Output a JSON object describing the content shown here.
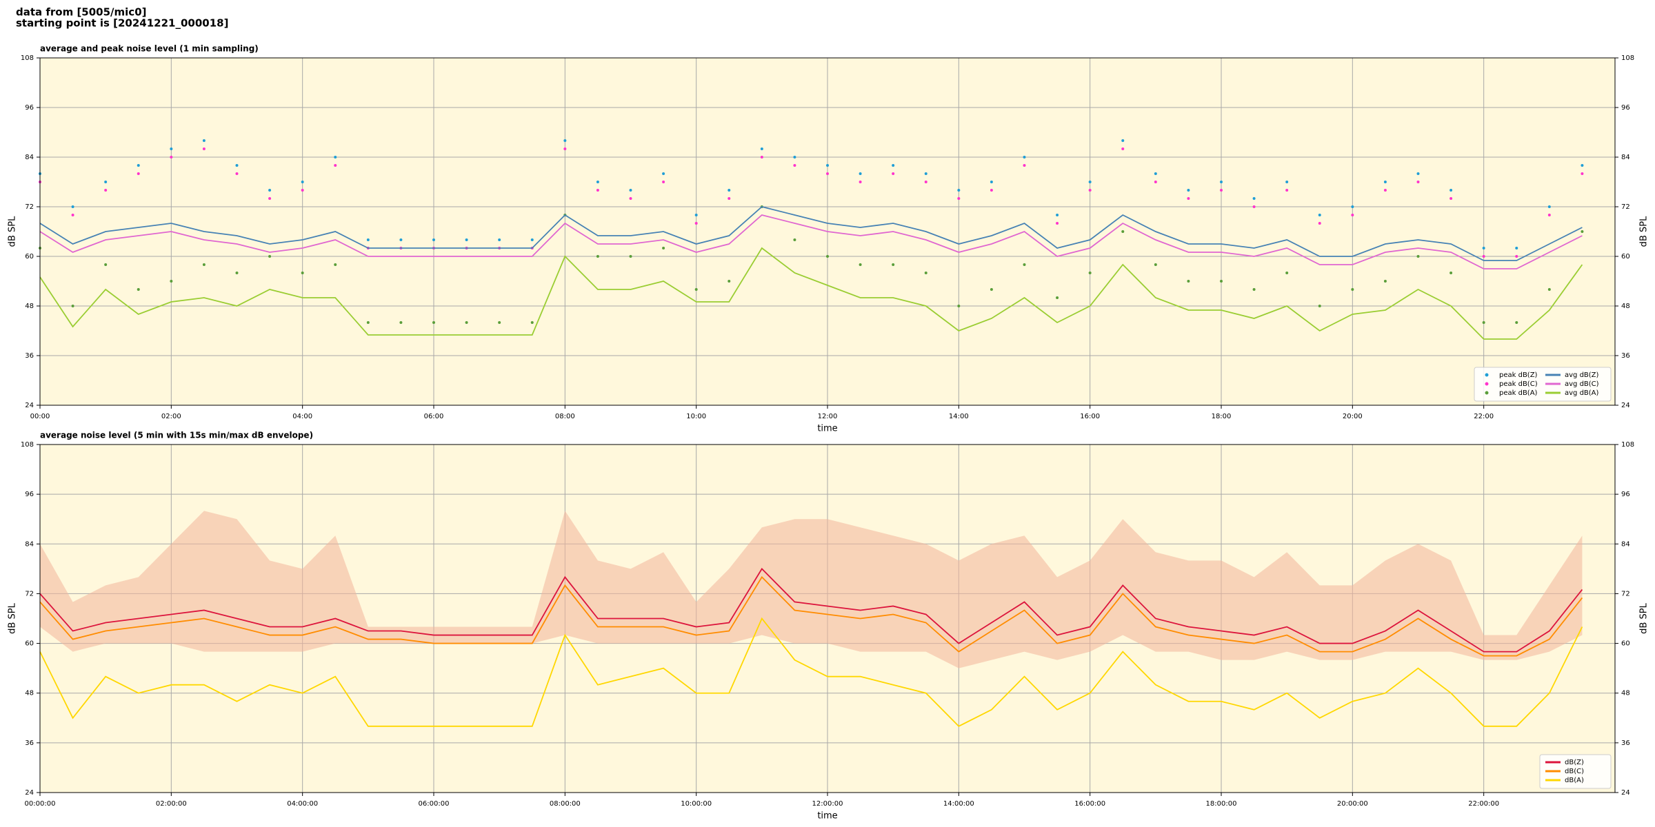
{
  "title": [
    "data from [5005/mic0]",
    "starting point is [20241221_000018]"
  ],
  "chart_data": [
    {
      "type": "line",
      "title": "average and peak noise level (1 min sampling)",
      "xlabel": "time",
      "ylabel": "dB SPL",
      "background": "#fff8dc",
      "grid": true,
      "legend": "lower right",
      "legend_columns": 2,
      "xlim": [
        0,
        24
      ],
      "ylim": [
        24,
        108
      ],
      "y2lim": [
        24,
        108
      ],
      "yticks": [
        24,
        36,
        48,
        60,
        72,
        84,
        96,
        108
      ],
      "y2ticks": [
        24,
        36,
        48,
        60,
        72,
        84,
        96,
        108
      ],
      "xticks": [
        {
          "value": 0,
          "label": "00:00"
        },
        {
          "value": 2,
          "label": "02:00"
        },
        {
          "value": 4,
          "label": "04:00"
        },
        {
          "value": 6,
          "label": "06:00"
        },
        {
          "value": 8,
          "label": "08:00"
        },
        {
          "value": 10,
          "label": "10:00"
        },
        {
          "value": 12,
          "label": "12:00"
        },
        {
          "value": 14,
          "label": "14:00"
        },
        {
          "value": 16,
          "label": "16:00"
        },
        {
          "value": 18,
          "label": "18:00"
        },
        {
          "value": 20,
          "label": "20:00"
        },
        {
          "value": 22,
          "label": "22:00"
        }
      ],
      "x": [
        0,
        0.5,
        1,
        1.5,
        2,
        2.5,
        3,
        3.5,
        4,
        4.5,
        5,
        5.5,
        6,
        6.5,
        7,
        7.5,
        8,
        8.5,
        9,
        9.5,
        10,
        10.5,
        11,
        11.5,
        12,
        12.5,
        13,
        13.5,
        14,
        14.5,
        15,
        15.5,
        16,
        16.5,
        17,
        17.5,
        18,
        18.5,
        19,
        19.5,
        20,
        20.5,
        21,
        21.5,
        22,
        22.5,
        23,
        23.5
      ],
      "series": [
        {
          "name": "peak dB(Z)",
          "style": "dots",
          "color": "#1f9ed6",
          "values": [
            80,
            72,
            78,
            82,
            86,
            88,
            82,
            76,
            78,
            84,
            64,
            64,
            64,
            64,
            64,
            64,
            88,
            78,
            76,
            80,
            70,
            76,
            86,
            84,
            82,
            80,
            82,
            80,
            76,
            78,
            84,
            70,
            78,
            88,
            80,
            76,
            78,
            74,
            78,
            70,
            72,
            78,
            80,
            76,
            62,
            62,
            72,
            82
          ]
        },
        {
          "name": "peak dB(C)",
          "style": "dots",
          "color": "#ff33cc",
          "values": [
            78,
            70,
            76,
            80,
            84,
            86,
            80,
            74,
            76,
            82,
            62,
            62,
            62,
            62,
            62,
            62,
            86,
            76,
            74,
            78,
            68,
            74,
            84,
            82,
            80,
            78,
            80,
            78,
            74,
            76,
            82,
            68,
            76,
            86,
            78,
            74,
            76,
            72,
            76,
            68,
            70,
            76,
            78,
            74,
            60,
            60,
            70,
            80
          ]
        },
        {
          "name": "peak dB(A)",
          "style": "dots",
          "color": "#5a9e3a",
          "values": [
            62,
            48,
            58,
            52,
            54,
            58,
            56,
            60,
            56,
            58,
            44,
            44,
            44,
            44,
            44,
            44,
            70,
            60,
            60,
            62,
            52,
            54,
            72,
            64,
            60,
            58,
            58,
            56,
            48,
            52,
            58,
            50,
            56,
            66,
            58,
            54,
            54,
            52,
            56,
            48,
            52,
            54,
            60,
            56,
            44,
            44,
            52,
            66
          ]
        },
        {
          "name": "avg dB(Z)",
          "style": "line",
          "color": "#4682b4",
          "values": [
            68,
            63,
            66,
            67,
            68,
            66,
            65,
            63,
            64,
            66,
            62,
            62,
            62,
            62,
            62,
            62,
            70,
            65,
            65,
            66,
            63,
            65,
            72,
            70,
            68,
            67,
            68,
            66,
            63,
            65,
            68,
            62,
            64,
            70,
            66,
            63,
            63,
            62,
            64,
            60,
            60,
            63,
            64,
            63,
            59,
            59,
            63,
            67
          ]
        },
        {
          "name": "avg dB(C)",
          "style": "line",
          "color": "#e066d0",
          "values": [
            66,
            61,
            64,
            65,
            66,
            64,
            63,
            61,
            62,
            64,
            60,
            60,
            60,
            60,
            60,
            60,
            68,
            63,
            63,
            64,
            61,
            63,
            70,
            68,
            66,
            65,
            66,
            64,
            61,
            63,
            66,
            60,
            62,
            68,
            64,
            61,
            61,
            60,
            62,
            58,
            58,
            61,
            62,
            61,
            57,
            57,
            61,
            65
          ]
        },
        {
          "name": "avg dB(A)",
          "style": "line",
          "color": "#9acd32",
          "values": [
            55,
            43,
            52,
            46,
            49,
            50,
            48,
            52,
            50,
            50,
            41,
            41,
            41,
            41,
            41,
            41,
            60,
            52,
            52,
            54,
            49,
            49,
            62,
            56,
            53,
            50,
            50,
            48,
            42,
            45,
            50,
            44,
            48,
            58,
            50,
            47,
            47,
            45,
            48,
            42,
            46,
            47,
            52,
            48,
            40,
            40,
            47,
            58
          ]
        }
      ]
    },
    {
      "type": "line",
      "title": "average noise level (5 min with 15s min/max dB envelope)",
      "xlabel": "time",
      "ylabel": "dB SPL",
      "background": "#fff8dc",
      "grid": true,
      "legend": "lower right",
      "legend_columns": 1,
      "xlim": [
        0,
        24
      ],
      "ylim": [
        24,
        108
      ],
      "y2lim": [
        24,
        108
      ],
      "yticks": [
        24,
        36,
        48,
        60,
        72,
        84,
        96,
        108
      ],
      "y2ticks": [
        24,
        36,
        48,
        60,
        72,
        84,
        96,
        108
      ],
      "xticks": [
        {
          "value": 0,
          "label": "00:00:00"
        },
        {
          "value": 2,
          "label": "02:00:00"
        },
        {
          "value": 4,
          "label": "04:00:00"
        },
        {
          "value": 6,
          "label": "06:00:00"
        },
        {
          "value": 8,
          "label": "08:00:00"
        },
        {
          "value": 10,
          "label": "10:00:00"
        },
        {
          "value": 12,
          "label": "12:00:00"
        },
        {
          "value": 14,
          "label": "14:00:00"
        },
        {
          "value": 16,
          "label": "16:00:00"
        },
        {
          "value": 18,
          "label": "18:00:00"
        },
        {
          "value": 20,
          "label": "20:00:00"
        },
        {
          "value": 22,
          "label": "22:00:00"
        }
      ],
      "x": [
        0,
        0.5,
        1,
        1.5,
        2,
        2.5,
        3,
        3.5,
        4,
        4.5,
        5,
        5.5,
        6,
        6.5,
        7,
        7.5,
        8,
        8.5,
        9,
        9.5,
        10,
        10.5,
        11,
        11.5,
        12,
        12.5,
        13,
        13.5,
        14,
        14.5,
        15,
        15.5,
        16,
        16.5,
        17,
        17.5,
        18,
        18.5,
        19,
        19.5,
        20,
        20.5,
        21,
        21.5,
        22,
        22.5,
        23,
        23.5
      ],
      "envelope": {
        "color": "#f2b49a",
        "low": [
          64,
          58,
          60,
          60,
          60,
          58,
          58,
          58,
          58,
          60,
          60,
          60,
          60,
          60,
          60,
          60,
          62,
          60,
          60,
          60,
          60,
          60,
          62,
          60,
          60,
          58,
          58,
          58,
          54,
          56,
          58,
          56,
          58,
          62,
          58,
          58,
          56,
          56,
          58,
          56,
          56,
          58,
          58,
          58,
          56,
          56,
          58,
          62
        ],
        "high": [
          84,
          70,
          74,
          76,
          84,
          92,
          90,
          80,
          78,
          86,
          64,
          64,
          64,
          64,
          64,
          64,
          92,
          80,
          78,
          82,
          70,
          78,
          88,
          90,
          90,
          88,
          86,
          84,
          80,
          84,
          86,
          76,
          80,
          90,
          82,
          80,
          80,
          76,
          82,
          74,
          74,
          80,
          84,
          80,
          62,
          62,
          74,
          86
        ]
      },
      "series": [
        {
          "name": "dB(Z)",
          "style": "line",
          "color": "#dc143c",
          "values": [
            72,
            63,
            65,
            66,
            67,
            68,
            66,
            64,
            64,
            66,
            63,
            63,
            62,
            62,
            62,
            62,
            76,
            66,
            66,
            66,
            64,
            65,
            78,
            70,
            69,
            68,
            69,
            67,
            60,
            65,
            70,
            62,
            64,
            74,
            66,
            64,
            63,
            62,
            64,
            60,
            60,
            63,
            68,
            63,
            58,
            58,
            63,
            73
          ]
        },
        {
          "name": "dB(C)",
          "style": "line",
          "color": "#ff8c00",
          "values": [
            70,
            61,
            63,
            64,
            65,
            66,
            64,
            62,
            62,
            64,
            61,
            61,
            60,
            60,
            60,
            60,
            74,
            64,
            64,
            64,
            62,
            63,
            76,
            68,
            67,
            66,
            67,
            65,
            58,
            63,
            68,
            60,
            62,
            72,
            64,
            62,
            61,
            60,
            62,
            58,
            58,
            61,
            66,
            61,
            57,
            57,
            61,
            71
          ]
        },
        {
          "name": "dB(A)",
          "style": "line",
          "color": "#ffd700",
          "values": [
            58,
            42,
            52,
            48,
            50,
            50,
            46,
            50,
            48,
            52,
            40,
            40,
            40,
            40,
            40,
            40,
            62,
            50,
            52,
            54,
            48,
            48,
            66,
            56,
            52,
            52,
            50,
            48,
            40,
            44,
            52,
            44,
            48,
            58,
            50,
            46,
            46,
            44,
            48,
            42,
            46,
            48,
            54,
            48,
            40,
            40,
            48,
            64
          ]
        }
      ]
    }
  ]
}
